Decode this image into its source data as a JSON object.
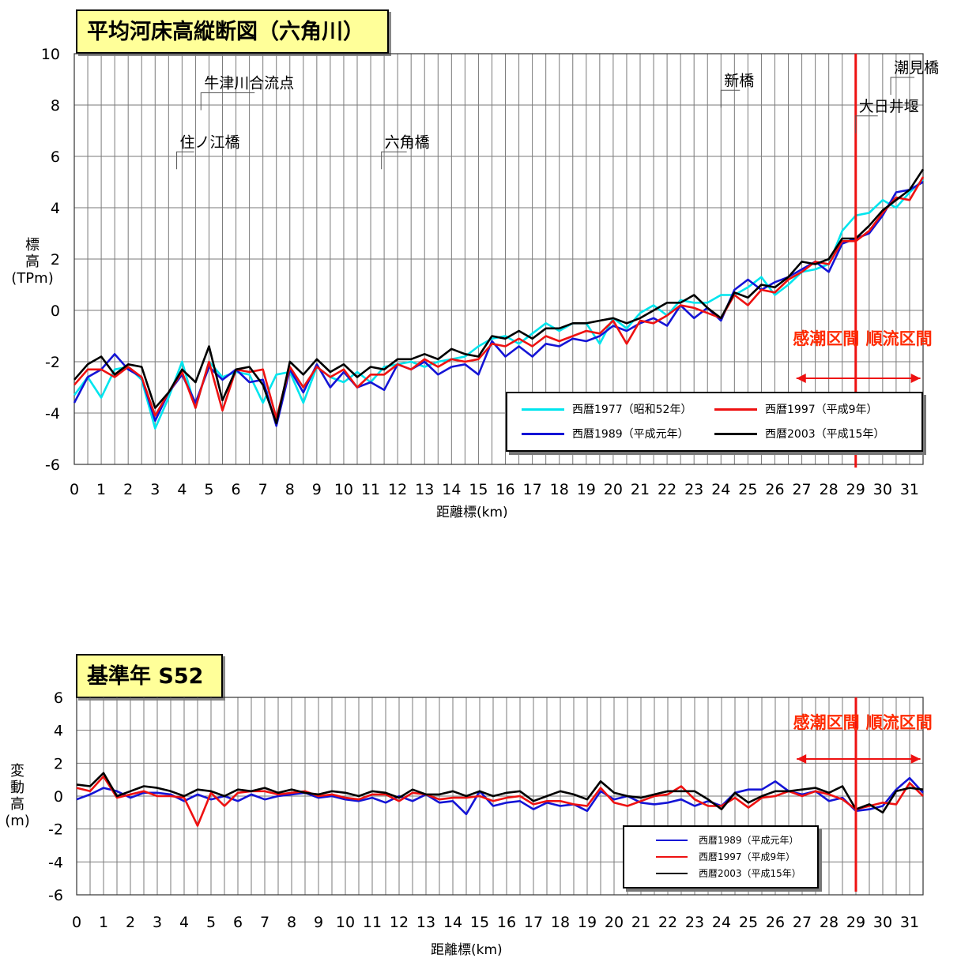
{
  "chart_data": [
    {
      "type": "line",
      "title": "平均河床高縦断図（六角川）",
      "xlabel": "距離標(km)",
      "ylabel": [
        "標",
        "高",
        "(TPm)"
      ],
      "xlim": [
        0,
        31.5
      ],
      "ylim": [
        -6,
        10
      ],
      "x_ticks": [
        0,
        1,
        2,
        3,
        4,
        5,
        6,
        7,
        8,
        9,
        10,
        11,
        12,
        13,
        14,
        15,
        16,
        17,
        18,
        19,
        20,
        21,
        22,
        23,
        24,
        25,
        26,
        27,
        28,
        29,
        30,
        31
      ],
      "y_ticks": [
        -6,
        -4,
        -2,
        0,
        2,
        4,
        6,
        8,
        10
      ],
      "grid": true,
      "legend_position": "bottom-right",
      "x": [
        0,
        0.5,
        1,
        1.5,
        2,
        2.5,
        3,
        3.5,
        4,
        4.5,
        5,
        5.5,
        6,
        6.5,
        7,
        7.5,
        8,
        8.5,
        9,
        9.5,
        10,
        10.5,
        11,
        11.5,
        12,
        12.5,
        13,
        13.5,
        14,
        14.5,
        15,
        15.5,
        16,
        16.5,
        17,
        17.5,
        18,
        18.5,
        19,
        19.5,
        20,
        20.5,
        21,
        21.5,
        22,
        22.5,
        23,
        23.5,
        24,
        24.5,
        25,
        25.5,
        26,
        26.5,
        27,
        27.5,
        28,
        28.5,
        29,
        29.5,
        30,
        30.5,
        31,
        31.5
      ],
      "series": [
        {
          "name": "西暦1977（昭和52年）",
          "color": "#00e5ee",
          "values": [
            -3.3,
            -2.6,
            -3.4,
            -2.3,
            -2.2,
            -2.7,
            -4.6,
            -3.4,
            -2.0,
            -3.8,
            -2.0,
            -2.6,
            -2.4,
            -2.5,
            -3.6,
            -2.5,
            -2.4,
            -3.6,
            -2.2,
            -2.6,
            -2.8,
            -2.4,
            -2.8,
            -2.2,
            -2.1,
            -2.0,
            -2.2,
            -2.0,
            -1.9,
            -1.8,
            -1.4,
            -1.1,
            -1.0,
            -1.3,
            -0.9,
            -0.5,
            -0.8,
            -0.5,
            -0.5,
            -1.3,
            -0.3,
            -0.7,
            -0.1,
            0.2,
            -0.2,
            0.4,
            0.3,
            0.3,
            0.6,
            0.6,
            0.9,
            1.3,
            0.6,
            1.0,
            1.5,
            1.6,
            1.8,
            3.1,
            3.7,
            3.8,
            4.3,
            4.0,
            4.6,
            5.1
          ]
        },
        {
          "name": "西暦1989（平成元年）",
          "color": "#1414d6",
          "values": [
            -3.6,
            -2.6,
            -2.3,
            -1.7,
            -2.3,
            -2.6,
            -4.3,
            -3.2,
            -2.5,
            -3.6,
            -2.2,
            -2.7,
            -2.3,
            -2.8,
            -2.7,
            -4.5,
            -2.3,
            -3.2,
            -2.1,
            -3.0,
            -2.4,
            -3.0,
            -2.8,
            -3.1,
            -2.1,
            -2.3,
            -2.0,
            -2.5,
            -2.2,
            -2.1,
            -2.5,
            -1.2,
            -1.8,
            -1.4,
            -1.8,
            -1.3,
            -1.4,
            -1.1,
            -1.2,
            -1.0,
            -0.6,
            -0.8,
            -0.5,
            -0.3,
            -0.6,
            0.2,
            -0.3,
            0.1,
            -0.4,
            0.8,
            1.2,
            0.8,
            1.1,
            1.3,
            1.6,
            1.9,
            1.5,
            2.6,
            2.8,
            3.0,
            3.7,
            4.6,
            4.7,
            5.0
          ]
        },
        {
          "name": "西暦1997（平成9年）",
          "color": "#ee1111",
          "values": [
            -2.9,
            -2.3,
            -2.3,
            -2.6,
            -2.2,
            -2.6,
            -4.1,
            -3.2,
            -2.4,
            -3.8,
            -2.0,
            -3.9,
            -2.3,
            -2.4,
            -2.3,
            -4.2,
            -2.2,
            -3.0,
            -2.2,
            -2.6,
            -2.3,
            -3.0,
            -2.5,
            -2.5,
            -2.1,
            -2.3,
            -1.9,
            -2.2,
            -1.9,
            -2.0,
            -1.9,
            -1.3,
            -1.4,
            -1.1,
            -1.4,
            -1.0,
            -1.2,
            -1.0,
            -0.8,
            -0.9,
            -0.4,
            -1.3,
            -0.4,
            -0.5,
            -0.2,
            0.2,
            0.1,
            -0.1,
            -0.3,
            0.6,
            0.2,
            0.8,
            0.7,
            1.2,
            1.5,
            1.9,
            1.8,
            2.7,
            2.7,
            3.1,
            3.8,
            4.4,
            4.3,
            5.2
          ]
        },
        {
          "name": "西暦2003（平成15年）",
          "color": "#000000",
          "values": [
            -2.7,
            -2.1,
            -1.8,
            -2.5,
            -2.1,
            -2.2,
            -3.8,
            -3.2,
            -2.3,
            -2.8,
            -1.4,
            -3.5,
            -2.3,
            -2.2,
            -2.9,
            -4.4,
            -2.0,
            -2.5,
            -1.9,
            -2.4,
            -2.1,
            -2.6,
            -2.2,
            -2.3,
            -1.9,
            -1.9,
            -1.7,
            -1.9,
            -1.5,
            -1.7,
            -1.8,
            -1.0,
            -1.1,
            -0.8,
            -1.1,
            -0.7,
            -0.7,
            -0.5,
            -0.5,
            -0.4,
            -0.3,
            -0.5,
            -0.3,
            0.0,
            0.3,
            0.3,
            0.6,
            0.1,
            -0.3,
            0.7,
            0.5,
            1.0,
            0.9,
            1.3,
            1.9,
            1.8,
            2.0,
            2.8,
            2.8,
            3.3,
            3.9,
            4.3,
            4.7,
            5.5
          ]
        }
      ],
      "annotations": [
        {
          "text": "住ノ江橋",
          "x": 3.8,
          "y": 5.5
        },
        {
          "text": "牛津川合流点",
          "x": 4.7,
          "y": 7.8
        },
        {
          "text": "六角橋",
          "x": 11.4,
          "y": 5.5
        },
        {
          "text": "新橋",
          "x": 24.0,
          "y": 7.9
        },
        {
          "text": "大日井堰",
          "x": 29.0,
          "y": 6.9
        },
        {
          "text": "潮見橋",
          "x": 30.3,
          "y": 8.4
        }
      ],
      "boundary_x": 29,
      "regions": [
        {
          "label": "感潮区間",
          "from": 26.8,
          "to": 29
        },
        {
          "label": "順流区間",
          "from": 29,
          "to": 31.4
        }
      ]
    },
    {
      "type": "line",
      "title": "基準年 S52",
      "xlabel": "距離標(km)",
      "ylabel": [
        "変",
        "動",
        "高",
        "(m)"
      ],
      "xlim": [
        0,
        31.5
      ],
      "ylim": [
        -6,
        6
      ],
      "x_ticks": [
        0,
        1,
        2,
        3,
        4,
        5,
        6,
        7,
        8,
        9,
        10,
        11,
        12,
        13,
        14,
        15,
        16,
        17,
        18,
        19,
        20,
        21,
        22,
        23,
        24,
        25,
        26,
        27,
        28,
        29,
        30,
        31
      ],
      "y_ticks": [
        -6,
        -4,
        -2,
        0,
        2,
        4,
        6
      ],
      "grid": true,
      "legend_position": "bottom-right",
      "x": [
        0,
        0.5,
        1,
        1.5,
        2,
        2.5,
        3,
        3.5,
        4,
        4.5,
        5,
        5.5,
        6,
        6.5,
        7,
        7.5,
        8,
        8.5,
        9,
        9.5,
        10,
        10.5,
        11,
        11.5,
        12,
        12.5,
        13,
        13.5,
        14,
        14.5,
        15,
        15.5,
        16,
        16.5,
        17,
        17.5,
        18,
        18.5,
        19,
        19.5,
        20,
        20.5,
        21,
        21.5,
        22,
        22.5,
        23,
        23.5,
        24,
        24.5,
        25,
        25.5,
        26,
        26.5,
        27,
        27.5,
        28,
        28.5,
        29,
        29.5,
        30,
        30.5,
        31,
        31.5
      ],
      "series": [
        {
          "name": "西暦1989（平成元年）",
          "color": "#1414d6",
          "values": [
            -0.2,
            0.1,
            0.5,
            0.3,
            -0.1,
            0.2,
            0.2,
            0.1,
            -0.3,
            0.1,
            -0.2,
            0.0,
            -0.3,
            0.1,
            -0.2,
            0.0,
            0.1,
            0.2,
            -0.1,
            0.0,
            -0.2,
            -0.3,
            -0.1,
            -0.4,
            0.0,
            -0.3,
            0.1,
            -0.4,
            -0.3,
            -1.1,
            0.3,
            -0.6,
            -0.4,
            -0.3,
            -0.8,
            -0.4,
            -0.6,
            -0.5,
            -0.9,
            0.3,
            -0.2,
            0.0,
            -0.4,
            -0.5,
            -0.4,
            -0.2,
            -0.6,
            -0.3,
            -0.6,
            0.2,
            0.4,
            0.4,
            0.9,
            0.3,
            0.1,
            0.3,
            -0.3,
            -0.1,
            -0.9,
            -0.8,
            -0.6,
            0.4,
            1.1,
            0.2
          ]
        },
        {
          "name": "西暦1997（平成9年）",
          "color": "#ee1111",
          "values": [
            0.5,
            0.3,
            1.2,
            -0.1,
            0.1,
            0.3,
            0.0,
            0.0,
            -0.1,
            -1.8,
            0.2,
            -0.6,
            0.2,
            0.3,
            0.3,
            0.1,
            0.2,
            0.3,
            0.0,
            0.1,
            -0.1,
            -0.2,
            0.1,
            0.1,
            -0.3,
            0.2,
            0.1,
            -0.2,
            -0.1,
            -0.1,
            0.0,
            -0.3,
            -0.1,
            0.0,
            -0.5,
            -0.3,
            -0.3,
            -0.5,
            -0.6,
            0.5,
            -0.4,
            -0.6,
            -0.3,
            0.0,
            0.1,
            0.6,
            -0.2,
            -0.6,
            -0.6,
            -0.1,
            -0.7,
            -0.1,
            0.0,
            0.3,
            0.0,
            0.3,
            0.1,
            -0.2,
            -0.8,
            -0.6,
            -0.4,
            -0.5,
            0.8,
            0.0
          ]
        },
        {
          "name": "西暦2003（平成15年）",
          "color": "#000000",
          "values": [
            0.7,
            0.6,
            1.4,
            0.0,
            0.3,
            0.6,
            0.5,
            0.3,
            0.0,
            0.4,
            0.3,
            0.0,
            0.4,
            0.3,
            0.5,
            0.2,
            0.4,
            0.2,
            0.1,
            0.3,
            0.2,
            0.0,
            0.3,
            0.2,
            -0.1,
            0.4,
            0.1,
            0.1,
            0.3,
            0.0,
            0.3,
            0.0,
            0.2,
            0.3,
            -0.3,
            0.0,
            0.3,
            0.1,
            -0.2,
            0.9,
            0.2,
            0.0,
            -0.1,
            0.1,
            0.3,
            0.3,
            0.3,
            -0.2,
            -0.8,
            0.2,
            -0.4,
            0.0,
            0.3,
            0.3,
            0.4,
            0.5,
            0.2,
            0.6,
            -0.8,
            -0.5,
            -1.0,
            0.3,
            0.5,
            0.4
          ]
        }
      ],
      "boundary_x": 29,
      "regions": [
        {
          "label": "感潮区間",
          "from": 26.8,
          "to": 29
        },
        {
          "label": "順流区間",
          "from": 29,
          "to": 31.4
        }
      ]
    }
  ]
}
